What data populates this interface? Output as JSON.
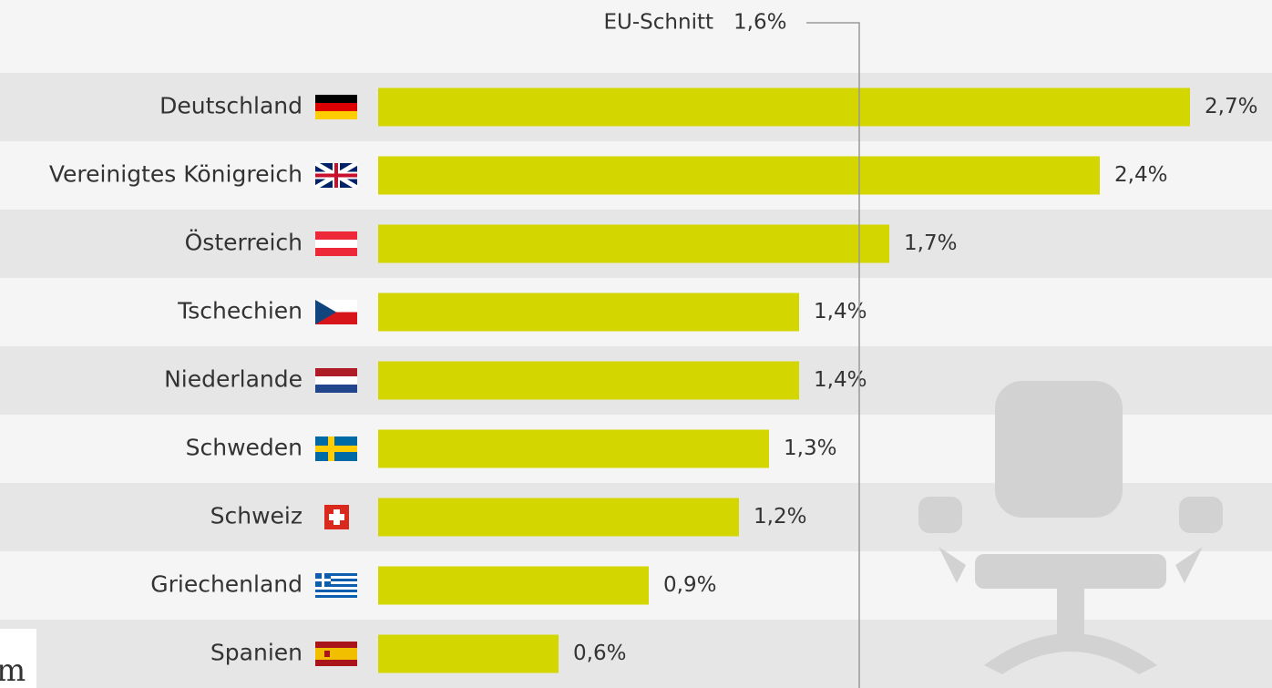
{
  "chart_data": {
    "type": "bar",
    "orientation": "horizontal",
    "categories": [
      "Deutschland",
      "Vereinigtes Königreich",
      "Österreich",
      "Tschechien",
      "Niederlande",
      "Schweden",
      "Schweiz",
      "Griechenland",
      "Spanien"
    ],
    "values": [
      2.7,
      2.4,
      1.7,
      1.4,
      1.4,
      1.3,
      1.2,
      0.9,
      0.6
    ],
    "value_labels": [
      "2,7%",
      "2,4%",
      "1,7%",
      "1,4%",
      "1,4%",
      "1,3%",
      "1,2%",
      "0,9%",
      "0,6%"
    ],
    "color": "#d4d600",
    "reference": {
      "label": "EU-Schnitt",
      "value": 1.6,
      "value_label": "1,6%"
    },
    "logo_fragment": "m"
  }
}
